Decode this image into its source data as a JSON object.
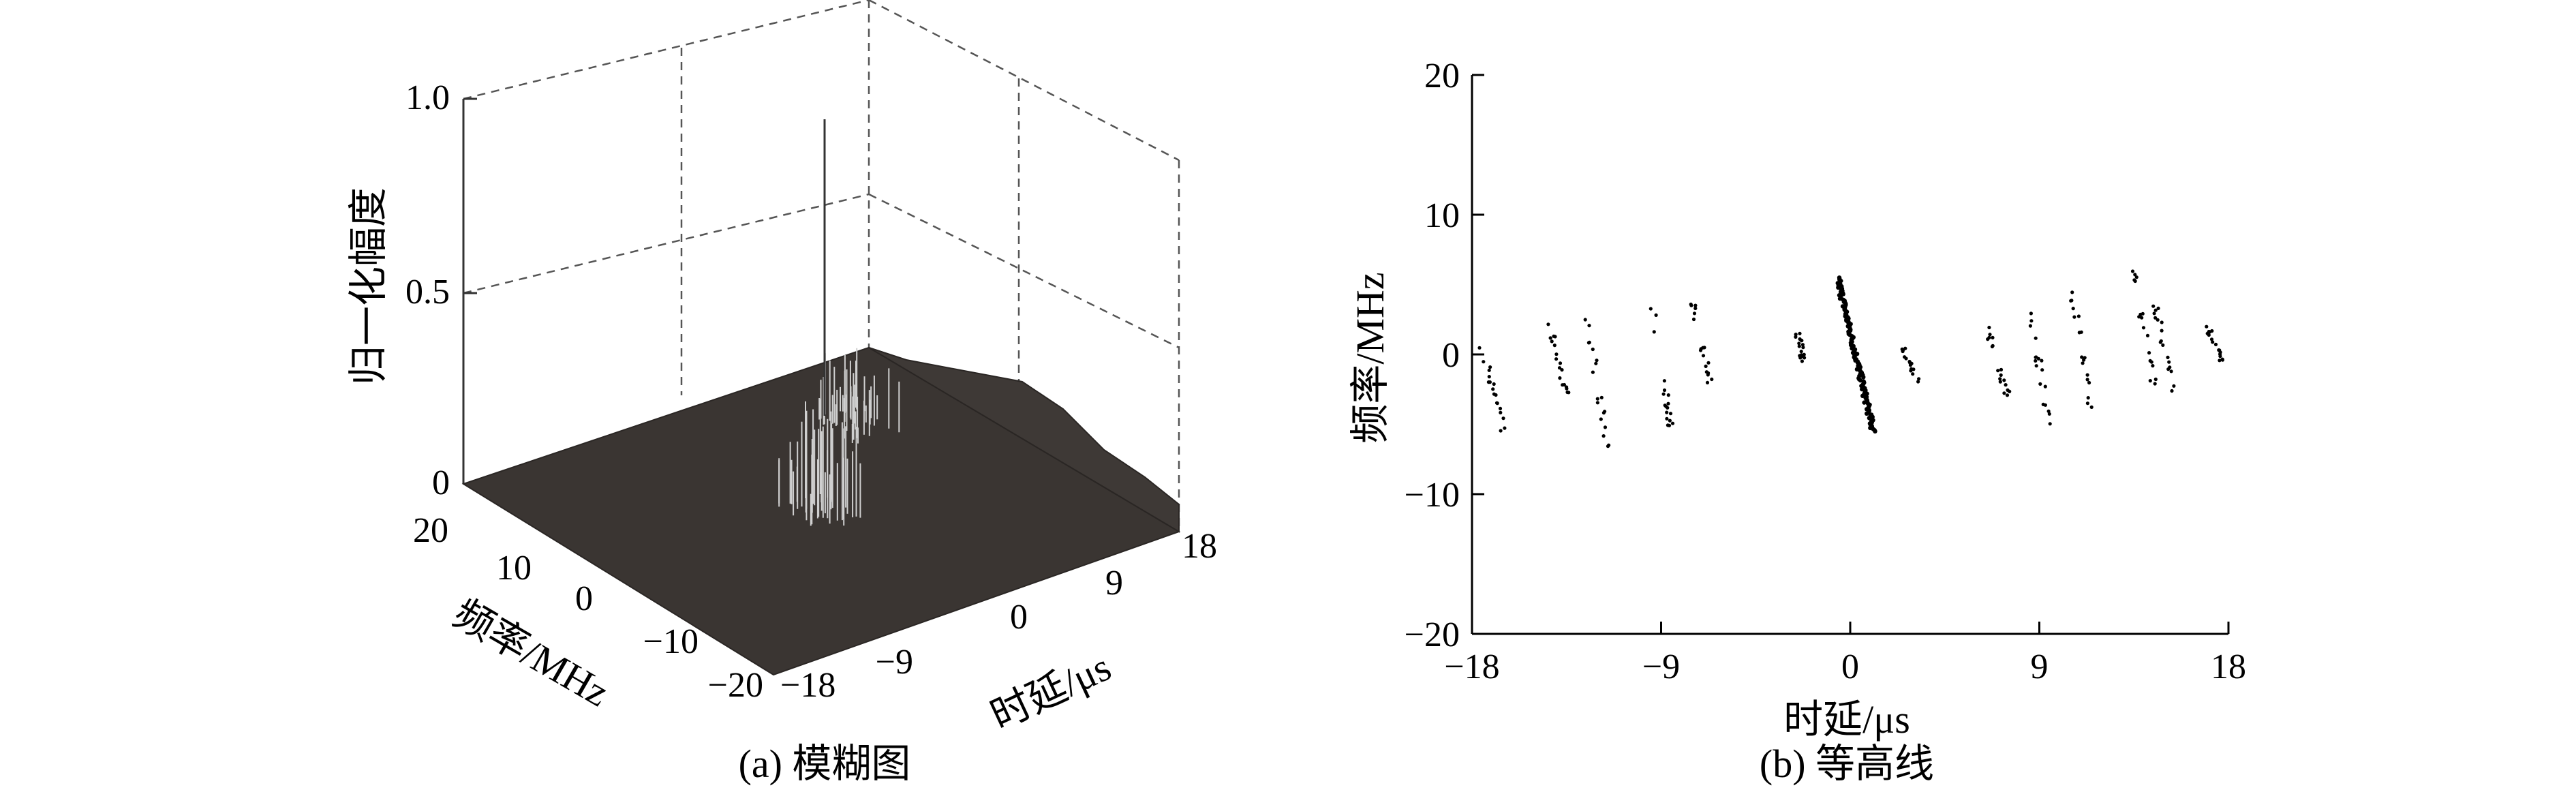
{
  "chart_data": [
    {
      "type": "surface",
      "panel": "a",
      "caption": "(a) 模糊图",
      "zlabel": "归一化幅度",
      "xlabel": "时延/μs",
      "ylabel": "频率/MHz",
      "xlim": [
        -18,
        18
      ],
      "ylim": [
        -20,
        20
      ],
      "zlim": [
        0,
        1.0
      ],
      "x_ticks": [
        "−18",
        "−9",
        "0",
        "9",
        "18"
      ],
      "y_ticks": [
        "20",
        "10",
        "0",
        "−10",
        "−20"
      ],
      "z_ticks": [
        "0",
        "0.5",
        "1.0"
      ],
      "grid": true,
      "peak": {
        "delay": 0,
        "freq": 0,
        "amplitude": 1.0
      },
      "clusters": [
        {
          "delay": 0,
          "freq": 0,
          "amplitude": 0.27
        },
        {
          "delay": 10,
          "freq": 10,
          "amplitude": 0.16
        }
      ]
    },
    {
      "type": "scatter",
      "panel": "b",
      "caption": "(b) 等高线",
      "xlabel": "时延/μs",
      "ylabel": "频率/MHz",
      "xlim": [
        -18,
        18
      ],
      "ylim": [
        -20,
        20
      ],
      "x_ticks": [
        "−18",
        "−9",
        "0",
        "9",
        "18"
      ],
      "y_ticks": [
        "20",
        "10",
        "0",
        "−10",
        "−20"
      ],
      "grid": false,
      "ridges": [
        {
          "x": [
            -17.5,
            -16.5
          ],
          "y": [
            0.5,
            -5.5
          ]
        },
        {
          "x": [
            -14.5,
            -13.5
          ],
          "y": [
            3.5,
            -3
          ]
        },
        {
          "x": [
            -12.5,
            -11.5
          ],
          "y": [
            2.5,
            -7
          ]
        },
        {
          "x": [
            -9.5,
            -8.5
          ],
          "y": [
            4,
            -5.5
          ]
        },
        {
          "x": [
            -7.5,
            -6.5
          ],
          "y": [
            4,
            -3.5
          ]
        },
        {
          "x": [
            -2.5,
            -2.2
          ],
          "y": [
            1.5,
            -0.5
          ]
        },
        {
          "x": [
            -0.6,
            1.1
          ],
          "y": [
            5.5,
            -5.5
          ]
        },
        {
          "x": [
            2.5,
            3.2
          ],
          "y": [
            0.5,
            -2
          ]
        },
        {
          "x": [
            6.5,
            7.5
          ],
          "y": [
            2,
            -3
          ]
        },
        {
          "x": [
            8.5,
            9.5
          ],
          "y": [
            3.5,
            -5
          ]
        },
        {
          "x": [
            10.5,
            11.5
          ],
          "y": [
            5,
            -4.5
          ]
        },
        {
          "x": [
            13.5,
            14.5
          ],
          "y": [
            6,
            -2.5
          ]
        },
        {
          "x": [
            14.5,
            15.5
          ],
          "y": [
            3.5,
            -3
          ]
        },
        {
          "x": [
            17.0,
            17.7
          ],
          "y": [
            2,
            -0.5
          ]
        }
      ]
    }
  ]
}
